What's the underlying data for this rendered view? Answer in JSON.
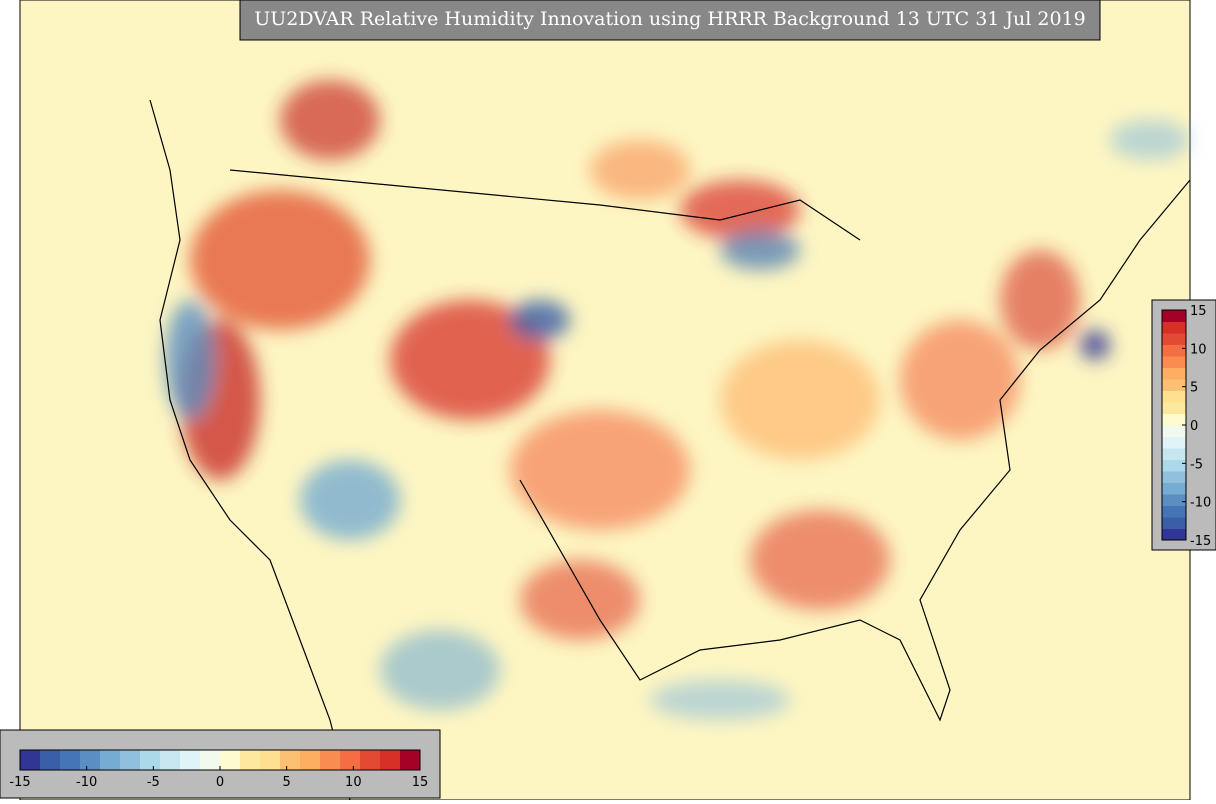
{
  "title": "UU2DVAR Relative Humidity Innovation using HRRR Background 13 UTC 31 Jul 2019",
  "colorbars": [
    {
      "orientation": "horizontal",
      "lim": [
        -15,
        15
      ],
      "ticks": [
        -15,
        -10,
        -5,
        0,
        5,
        10,
        15
      ],
      "colors": [
        "#313695",
        "#3a5fa8",
        "#4575b4",
        "#5b8ec2",
        "#74add1",
        "#91c0dc",
        "#abd9e9",
        "#c7e6f0",
        "#e0f3f8",
        "#f2faf0",
        "#fffbd0",
        "#fee8a0",
        "#fee090",
        "#fdc072",
        "#fdae61",
        "#f88d52",
        "#f46d43",
        "#e34a33",
        "#d73027",
        "#a50026"
      ]
    },
    {
      "orientation": "vertical",
      "lim": [
        -15,
        15
      ],
      "ticks": [
        -15,
        -10,
        -5,
        0,
        5,
        10,
        15
      ],
      "colors": [
        "#313695",
        "#3a5fa8",
        "#4575b4",
        "#5b8ec2",
        "#74add1",
        "#91c0dc",
        "#abd9e9",
        "#c7e6f0",
        "#e0f3f8",
        "#f2faf0",
        "#fffbd0",
        "#fee8a0",
        "#fee090",
        "#fdc072",
        "#fdae61",
        "#f88d52",
        "#f46d43",
        "#e34a33",
        "#d73027",
        "#a50026"
      ]
    }
  ]
}
